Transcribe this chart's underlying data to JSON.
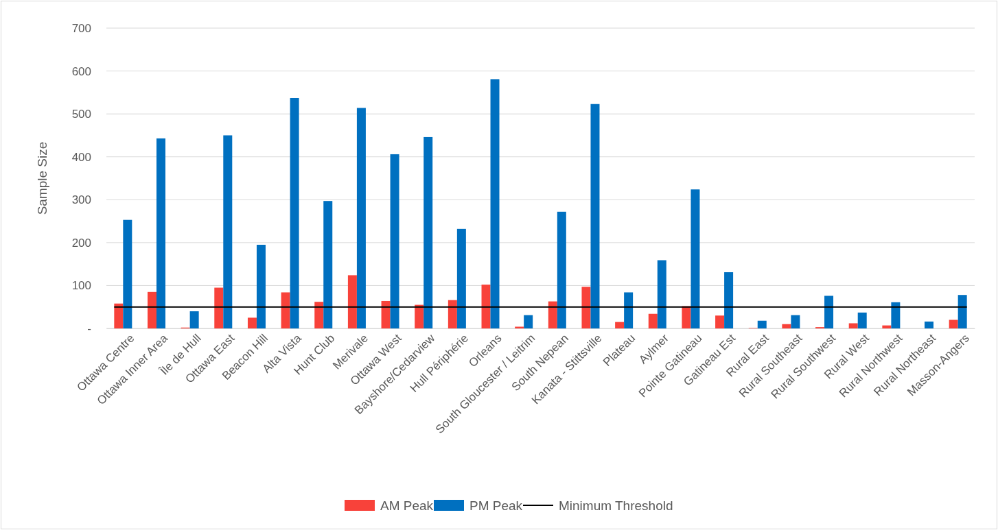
{
  "chart_data": {
    "type": "bar",
    "ylabel": "Sample Size",
    "categories": [
      "Ottawa Centre",
      "Ottawa Inner Area",
      "Île de Hull",
      "Ottawa East",
      "Beacon Hill",
      "Alta Vista",
      "Hunt Club",
      "Merivale",
      "Ottawa West",
      "Bayshore/Cedarview",
      "Hull Périphérie",
      "Orleans",
      "South Gloucester / Leitrim",
      "South Nepean",
      "Kanata - Stittsville",
      "Plateau",
      "Aylmer",
      "Pointe Gatineau",
      "Gatineau Est",
      "Rural East",
      "Rural Southeast",
      "Rural Southwest",
      "Rural West",
      "Rural Northwest",
      "Rural Northeast",
      "Masson-Angers"
    ],
    "series": [
      {
        "name": "AM Peak",
        "color": "#f8423a",
        "values": [
          58,
          85,
          2,
          95,
          25,
          84,
          62,
          124,
          64,
          55,
          66,
          102,
          4,
          63,
          97,
          15,
          34,
          52,
          30,
          1,
          10,
          3,
          12,
          7,
          0,
          20
        ]
      },
      {
        "name": "PM Peak",
        "color": "#0070c0",
        "values": [
          253,
          443,
          40,
          450,
          195,
          537,
          297,
          514,
          406,
          446,
          232,
          581,
          31,
          272,
          523,
          84,
          159,
          324,
          131,
          18,
          31,
          76,
          37,
          61,
          16,
          78
        ]
      }
    ],
    "ref_lines": [
      {
        "axis": "y",
        "value": 50,
        "label": "Minimum Threshold",
        "color": "#000000"
      }
    ],
    "ylim": [
      0,
      700
    ],
    "yticks": [
      {
        "value": 0,
        "label": "-"
      },
      100,
      200,
      300,
      400,
      500,
      600,
      700
    ],
    "grid": "y",
    "legend": "bottom"
  }
}
